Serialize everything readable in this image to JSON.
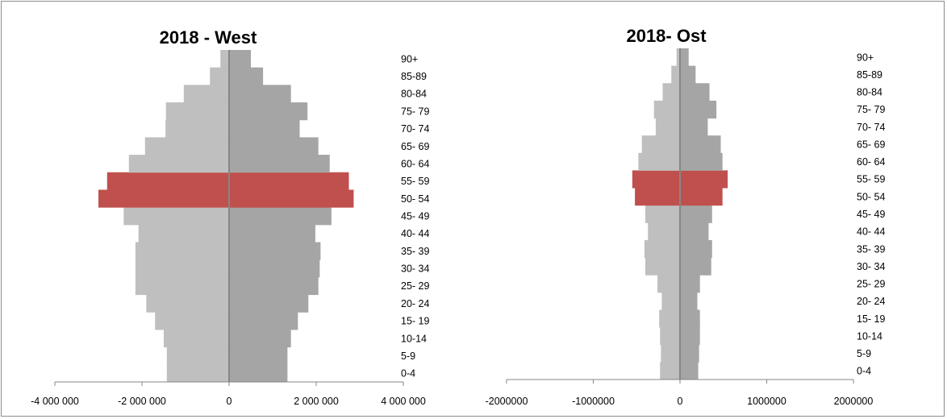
{
  "chart_data": [
    {
      "type": "bar",
      "title": "2018 - West",
      "categories": [
        "0-4",
        "5-9",
        "10-14",
        "15- 19",
        "20- 24",
        "25- 29",
        "30- 34",
        "35- 39",
        "40- 44",
        "45- 49",
        "50- 54",
        "55- 59",
        "60- 64",
        "65- 69",
        "70- 74",
        "75- 79",
        "80-84",
        "85-89",
        "90+"
      ],
      "series": [
        {
          "side": "left",
          "values": [
            -1430000,
            -1430000,
            -1500000,
            -1700000,
            -1900000,
            -2150000,
            -2150000,
            -2150000,
            -2080000,
            -2420000,
            -3000000,
            -2800000,
            -2300000,
            -1930000,
            -1460000,
            -1450000,
            -1040000,
            -440000,
            -200000
          ]
        },
        {
          "side": "right",
          "values": [
            1340000,
            1340000,
            1420000,
            1580000,
            1820000,
            2050000,
            2080000,
            2100000,
            1980000,
            2350000,
            2860000,
            2750000,
            2310000,
            2050000,
            1620000,
            1800000,
            1420000,
            780000,
            500000
          ]
        }
      ],
      "highlight_categories": [
        "50- 54",
        "55- 59"
      ],
      "xticks": [
        "-4 000 000",
        "-2 000 000",
        "0",
        "2 000 000",
        "4 000 000"
      ],
      "xlim": [
        -4000000,
        4000000
      ],
      "colors": {
        "left": "#bfbfbf",
        "right": "#a5a5a5",
        "highlight": "#c0504d",
        "axis": "#868686"
      }
    },
    {
      "type": "bar",
      "title": "2018- Ost",
      "categories": [
        "0-4",
        "5-9",
        "10-14",
        "15- 19",
        "20- 24",
        "25- 29",
        "30- 34",
        "35- 39",
        "40- 44",
        "45- 49",
        "50- 54",
        "55- 59",
        "60- 64",
        "65- 69",
        "70- 74",
        "75- 79",
        "80-84",
        "85-89",
        "90+"
      ],
      "series": [
        {
          "side": "left",
          "values": [
            -230000,
            -220000,
            -230000,
            -240000,
            -210000,
            -260000,
            -400000,
            -410000,
            -370000,
            -400000,
            -520000,
            -550000,
            -480000,
            -440000,
            -280000,
            -300000,
            -200000,
            -100000,
            -40000
          ]
        },
        {
          "side": "right",
          "values": [
            210000,
            220000,
            230000,
            230000,
            200000,
            230000,
            360000,
            370000,
            330000,
            370000,
            490000,
            550000,
            490000,
            470000,
            320000,
            420000,
            340000,
            180000,
            100000
          ]
        }
      ],
      "highlight_categories": [
        "50- 54",
        "55- 59"
      ],
      "xticks": [
        "-2000000",
        "-1000000",
        "0",
        "1000000",
        "2000000"
      ],
      "xlim": [
        -2000000,
        2000000
      ],
      "colors": {
        "left": "#bfbfbf",
        "right": "#a5a5a5",
        "highlight": "#c0504d",
        "axis": "#868686"
      }
    }
  ]
}
